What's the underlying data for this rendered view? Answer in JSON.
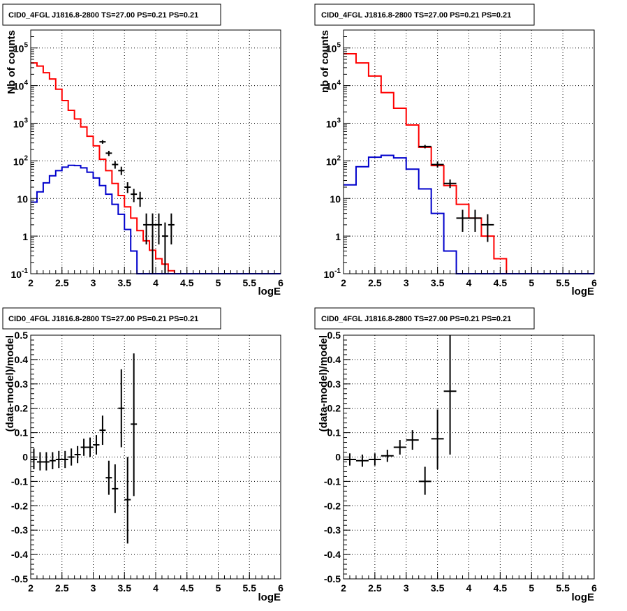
{
  "chart_data": [
    {
      "type": "step",
      "title": "CID0_4FGL J1816.8-2800 TS=27.00 PS=0.21 PS=0.21",
      "xlabel": "logE",
      "ylabel": "Nb of counts",
      "xlim": [
        2,
        6
      ],
      "ylim": [
        0.1,
        300000
      ],
      "yscale": "log",
      "grid": true,
      "bin_width": 0.1,
      "x_ticks": [
        "2",
        "2.5",
        "3",
        "3.5",
        "4",
        "4.5",
        "5",
        "5.5",
        "6"
      ],
      "y_ticks": [
        {
          "value": 0.1,
          "base": "10",
          "exp": "-1"
        },
        {
          "value": 1,
          "label": "1"
        },
        {
          "value": 10,
          "label": "10"
        },
        {
          "value": 100,
          "base": "10",
          "exp": "2"
        },
        {
          "value": 1000,
          "base": "10",
          "exp": "3"
        },
        {
          "value": 10000,
          "base": "10",
          "exp": "4"
        },
        {
          "value": 100000,
          "base": "10",
          "exp": "5"
        }
      ],
      "series": [
        {
          "role": "total_model",
          "color": "#ff0000",
          "edges": [
            2.0,
            2.1,
            2.2,
            2.3,
            2.4,
            2.5,
            2.6,
            2.7,
            2.8,
            2.9,
            3.0,
            3.1,
            3.2,
            3.3,
            3.4,
            3.5,
            3.6,
            3.7,
            3.8,
            3.9,
            4.0,
            4.1,
            4.2,
            4.3,
            4.4,
            4.5,
            4.6,
            4.7,
            4.8,
            4.9,
            5.0,
            5.1,
            5.2,
            5.3,
            5.4,
            5.5,
            5.6,
            5.7,
            5.8,
            5.9,
            6.0
          ],
          "values": [
            40000,
            33000,
            22000,
            15000,
            8000,
            4000,
            2200,
            1300,
            800,
            450,
            250,
            110,
            55,
            25,
            12,
            6,
            3,
            1.4,
            0.75,
            0.42,
            0.25,
            0.18,
            0.12,
            0.1,
            0.1,
            0.1,
            0.1,
            0.1,
            0.1,
            0.1,
            0.1,
            0.1,
            0.1,
            0.1,
            0.1,
            0.1,
            0.1,
            0.1,
            0.1,
            0.1
          ]
        },
        {
          "role": "source_model",
          "color": "#0000cc",
          "edges": [
            2.0,
            2.1,
            2.2,
            2.3,
            2.4,
            2.5,
            2.6,
            2.7,
            2.8,
            2.9,
            3.0,
            3.1,
            3.2,
            3.3,
            3.4,
            3.5,
            3.6,
            3.7,
            3.8,
            3.9,
            4.0,
            4.1,
            4.2,
            4.3,
            4.4,
            4.5,
            4.6,
            4.7,
            4.8,
            4.9,
            5.0,
            5.1,
            5.2,
            5.3,
            5.4,
            5.5,
            5.6,
            5.7,
            5.8,
            5.9,
            6.0
          ],
          "values": [
            8,
            15,
            26,
            40,
            55,
            68,
            76,
            75,
            65,
            50,
            35,
            22,
            13,
            7,
            3.8,
            1.5,
            0.4,
            0.1,
            0.1,
            0.1,
            0.1,
            0.1,
            0.1,
            0.1,
            0.1,
            0.1,
            0.1,
            0.1,
            0.1,
            0.1,
            0.1,
            0.1,
            0.1,
            0.1,
            0.1,
            0.1,
            0.1,
            0.1,
            0.1,
            0.1
          ]
        }
      ],
      "points": [
        {
          "x": 3.15,
          "y": 320,
          "lo": 285,
          "hi": 355
        },
        {
          "x": 3.25,
          "y": 160,
          "lo": 135,
          "hi": 185
        },
        {
          "x": 3.35,
          "y": 80,
          "lo": 62,
          "hi": 98
        },
        {
          "x": 3.45,
          "y": 55,
          "lo": 42,
          "hi": 70
        },
        {
          "x": 3.55,
          "y": 20,
          "lo": 14,
          "hi": 27
        },
        {
          "x": 3.65,
          "y": 13,
          "lo": 8,
          "hi": 18
        },
        {
          "x": 3.75,
          "y": 10,
          "lo": 6,
          "hi": 15
        },
        {
          "x": 3.85,
          "y": 2,
          "lo": 0.6,
          "hi": 4
        },
        {
          "x": 3.95,
          "y": 2,
          "lo": 0.1,
          "hi": 4
        },
        {
          "x": 4.05,
          "y": 2,
          "lo": 0.6,
          "hi": 4
        },
        {
          "x": 4.15,
          "y": 1,
          "lo": 0.1,
          "hi": 2.3
        },
        {
          "x": 4.25,
          "y": 2,
          "lo": 0.6,
          "hi": 4
        }
      ]
    },
    {
      "type": "step",
      "title": "CID0_4FGL J1816.8-2800 TS=27.00 PS=0.21 PS=0.21",
      "xlabel": "logE",
      "ylabel": "nb of counts",
      "xlim": [
        2,
        6
      ],
      "ylim": [
        0.1,
        300000
      ],
      "yscale": "log",
      "grid": true,
      "bin_width": 0.2,
      "x_ticks": [
        "2",
        "2.5",
        "3",
        "3.5",
        "4",
        "4.5",
        "5",
        "5.5",
        "6"
      ],
      "y_ticks": [
        {
          "value": 0.1,
          "base": "10",
          "exp": "-1"
        },
        {
          "value": 1,
          "label": "1"
        },
        {
          "value": 10,
          "label": "10"
        },
        {
          "value": 100,
          "base": "10",
          "exp": "2"
        },
        {
          "value": 1000,
          "base": "10",
          "exp": "3"
        },
        {
          "value": 10000,
          "base": "10",
          "exp": "4"
        },
        {
          "value": 100000,
          "base": "10",
          "exp": "5"
        }
      ],
      "series": [
        {
          "role": "total_model",
          "color": "#ff0000",
          "edges": [
            2.0,
            2.2,
            2.4,
            2.6,
            2.8,
            3.0,
            3.2,
            3.4,
            3.6,
            3.8,
            4.0,
            4.2,
            4.4,
            4.6,
            4.8,
            5.0,
            5.2,
            5.4,
            5.6,
            5.8,
            6.0
          ],
          "values": [
            70000,
            40000,
            18000,
            6500,
            2500,
            900,
            230,
            75,
            22,
            7,
            3,
            1,
            0.25,
            0.1,
            0.1,
            0.1,
            0.1,
            0.1,
            0.1,
            0.1
          ]
        },
        {
          "role": "source_model",
          "color": "#0000cc",
          "edges": [
            2.0,
            2.2,
            2.4,
            2.6,
            2.8,
            3.0,
            3.2,
            3.4,
            3.6,
            3.8,
            4.0,
            4.2,
            4.4,
            4.6,
            4.8,
            5.0,
            5.2,
            5.4,
            5.6,
            5.8,
            6.0
          ],
          "values": [
            23,
            70,
            125,
            140,
            120,
            60,
            18,
            4,
            0.4,
            0.1,
            0.1,
            0.1,
            0.1,
            0.1,
            0.1,
            0.1,
            0.1,
            0.1,
            0.1,
            0.1
          ]
        }
      ],
      "points": [
        {
          "x": 3.3,
          "y": 240,
          "lo": 215,
          "hi": 265
        },
        {
          "x": 3.5,
          "y": 80,
          "lo": 66,
          "hi": 95
        },
        {
          "x": 3.7,
          "y": 25,
          "lo": 19,
          "hi": 32
        },
        {
          "x": 3.9,
          "y": 3,
          "lo": 1.3,
          "hi": 5
        },
        {
          "x": 4.1,
          "y": 3,
          "lo": 1.3,
          "hi": 5
        },
        {
          "x": 4.3,
          "y": 2,
          "lo": 0.7,
          "hi": 3.8
        }
      ]
    },
    {
      "type": "scatter",
      "title": "CID0_4FGL J1816.8-2800 TS=27.00 PS=0.21 PS=0.21",
      "xlabel": "logE",
      "ylabel": "(data-model)/model",
      "xlim": [
        2,
        6
      ],
      "ylim": [
        -0.5,
        0.5
      ],
      "yscale": "linear",
      "grid": true,
      "bin_width": 0.1,
      "x_ticks": [
        "2",
        "2.5",
        "3",
        "3.5",
        "4",
        "4.5",
        "5",
        "5.5",
        "6"
      ],
      "y_ticks": [
        "-0.5",
        "-0.4",
        "-0.3",
        "-0.2",
        "-0.1",
        "0",
        "0.1",
        "0.2",
        "0.3",
        "0.4",
        "0.5"
      ],
      "series": [],
      "points": [
        {
          "x": 2.05,
          "y": -0.01,
          "lo": -0.05,
          "hi": 0.035
        },
        {
          "x": 2.15,
          "y": -0.02,
          "lo": -0.055,
          "hi": 0.02
        },
        {
          "x": 2.25,
          "y": -0.02,
          "lo": -0.055,
          "hi": 0.02
        },
        {
          "x": 2.35,
          "y": -0.015,
          "lo": -0.05,
          "hi": 0.02
        },
        {
          "x": 2.45,
          "y": -0.01,
          "lo": -0.045,
          "hi": 0.025
        },
        {
          "x": 2.55,
          "y": -0.01,
          "lo": -0.045,
          "hi": 0.025
        },
        {
          "x": 2.65,
          "y": 0.0,
          "lo": -0.035,
          "hi": 0.035
        },
        {
          "x": 2.75,
          "y": 0.01,
          "lo": -0.025,
          "hi": 0.045
        },
        {
          "x": 2.85,
          "y": 0.04,
          "lo": 0.005,
          "hi": 0.075
        },
        {
          "x": 2.95,
          "y": 0.04,
          "lo": 0.0,
          "hi": 0.08
        },
        {
          "x": 3.05,
          "y": 0.05,
          "lo": 0.01,
          "hi": 0.09
        },
        {
          "x": 3.15,
          "y": 0.11,
          "lo": 0.05,
          "hi": 0.17
        },
        {
          "x": 3.25,
          "y": -0.085,
          "lo": -0.155,
          "hi": -0.015
        },
        {
          "x": 3.35,
          "y": -0.13,
          "lo": -0.23,
          "hi": -0.03
        },
        {
          "x": 3.45,
          "y": 0.2,
          "lo": 0.04,
          "hi": 0.36
        },
        {
          "x": 3.55,
          "y": -0.175,
          "lo": -0.355,
          "hi": 0.0
        },
        {
          "x": 3.65,
          "y": 0.135,
          "lo": -0.16,
          "hi": 0.425
        }
      ]
    },
    {
      "type": "scatter",
      "title": "CID0_4FGL J1816.8-2800 TS=27.00 PS=0.21 PS=0.21",
      "xlabel": "logE",
      "ylabel": "(data-model)/model",
      "xlim": [
        2,
        6
      ],
      "ylim": [
        -0.5,
        0.5
      ],
      "yscale": "linear",
      "grid": true,
      "bin_width": 0.2,
      "x_ticks": [
        "2",
        "2.5",
        "3",
        "3.5",
        "4",
        "4.5",
        "5",
        "5.5",
        "6"
      ],
      "y_ticks": [
        "-0.5",
        "-0.4",
        "-0.3",
        "-0.2",
        "-0.1",
        "0",
        "0.1",
        "0.2",
        "0.3",
        "0.4",
        "0.5"
      ],
      "series": [],
      "points": [
        {
          "x": 2.1,
          "y": -0.01,
          "lo": -0.035,
          "hi": 0.015
        },
        {
          "x": 2.3,
          "y": -0.015,
          "lo": -0.04,
          "hi": 0.01
        },
        {
          "x": 2.5,
          "y": -0.01,
          "lo": -0.035,
          "hi": 0.015
        },
        {
          "x": 2.7,
          "y": 0.005,
          "lo": -0.02,
          "hi": 0.03
        },
        {
          "x": 2.9,
          "y": 0.04,
          "lo": 0.01,
          "hi": 0.07
        },
        {
          "x": 3.1,
          "y": 0.07,
          "lo": 0.03,
          "hi": 0.11
        },
        {
          "x": 3.3,
          "y": -0.1,
          "lo": -0.155,
          "hi": -0.04
        },
        {
          "x": 3.5,
          "y": 0.075,
          "lo": -0.05,
          "hi": 0.195
        },
        {
          "x": 3.7,
          "y": 0.27,
          "lo": 0.01,
          "hi": 0.5
        }
      ]
    }
  ]
}
